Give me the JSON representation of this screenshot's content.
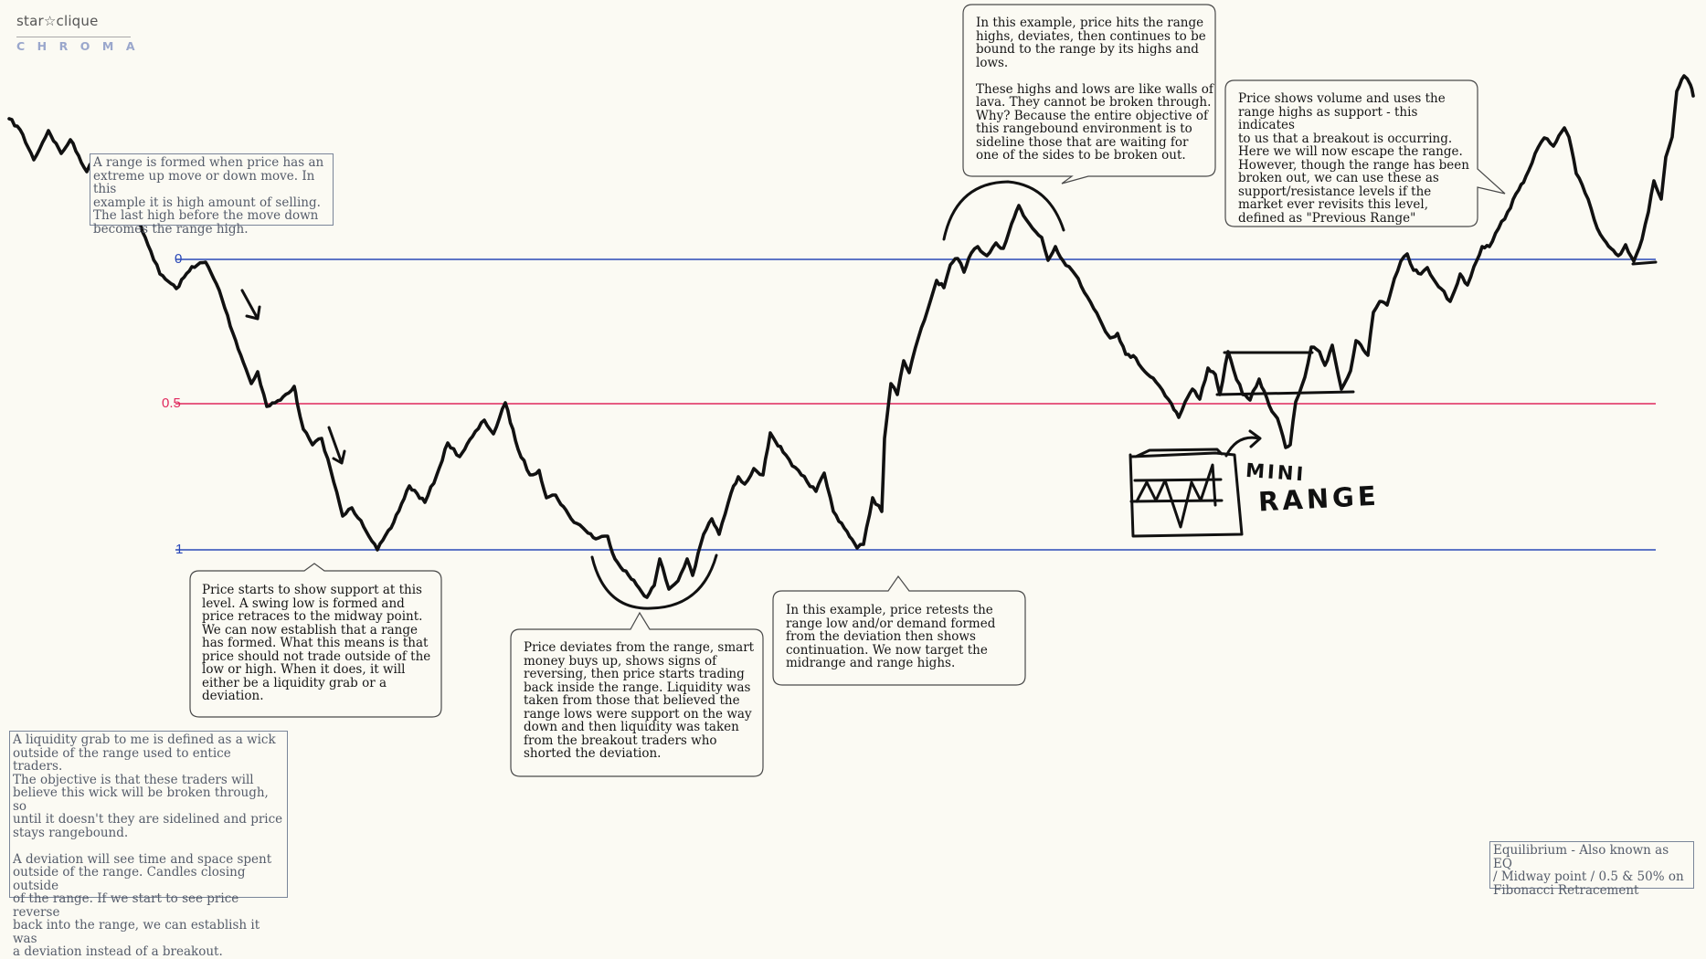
{
  "logo": {
    "top": "star☆clique",
    "bottom": "CHROMA"
  },
  "levels": [
    {
      "label": "0",
      "color": "#2b49b8"
    },
    {
      "label": "0.5",
      "color": "#e0285d"
    },
    {
      "label": "1",
      "color": "#2b49b8"
    }
  ],
  "notes": {
    "range_formed": "A range is formed when price has an\nextreme up move or down move. In this\nexample it is high amount of selling.\nThe last high before the move down\nbecomes the range high.",
    "support": "Price starts to show support at this\nlevel. A swing low is formed and\nprice retraces to the midway point.\nWe can now establish that a range\nhas formed. What this means is that\nprice should not trade outside of the\nlow or high. When it does, it will\neither be a liquidity grab or a\ndeviation.",
    "deviates_low": "Price deviates from the range, smart\nmoney buys up, shows signs of\nreversing, then price starts trading\nback inside the range. Liquidity was\ntaken from those that believed the\nrange lows were support on the way\ndown and then liquidity was taken\nfrom the breakout traders who\nshorted the deviation.",
    "retest": "In this example, price retests the\nrange low and/or demand formed\nfrom the deviation then shows\ncontinuation. We now target the\nmidrange and range highs.",
    "highs_deviate": "In this example, price hits the range\nhighs, deviates, then continues to be\nbound to the range by its highs and\nlows.\n\nThese highs and lows are like walls of\nlava. They cannot be broken through.\nWhy? Because the entire objective of\nthis rangebound environment is to\nsideline those that are waiting for\none of the sides to be broken out.",
    "breakout": "Price shows volume and uses the\nrange highs as support - this indicates\nto us that a breakout is occurring.\nHere we will now escape the range.\nHowever, though the range has been\nbroken out, we can use these as\nsupport/resistance levels if the\nmarket ever revisits this level,\ndefined as \"Previous Range\"",
    "liquidity_grab": "A liquidity grab to me is defined as a wick\noutside of the range used to entice traders.\nThe objective is that these traders will\nbelieve this wick will be broken through, so\nuntil it doesn't they are sidelined and price\nstays rangebound.\n\nA deviation will see time and space spent\noutside of the range. Candles closing outside\nof the range. If we start to see price reverse\nback into the range, we can establish it was\na deviation instead of a breakout.",
    "equilibrium": "Equilibrium - Also known as EQ\n/ Midway point / 0.5 & 50% on\nFibonacci Retracement"
  },
  "handwriting": {
    "line1": "MINI",
    "line2": "RANGE"
  },
  "colors": {
    "background": "#fbfaf3",
    "price_line": "#111111",
    "range_line": "#2b49b8",
    "mid_line": "#e0285d"
  }
}
